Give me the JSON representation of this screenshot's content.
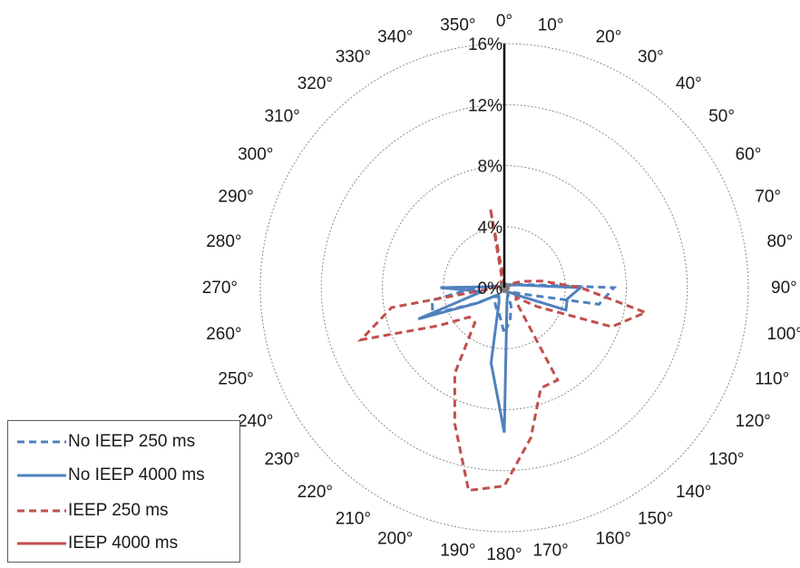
{
  "chart_data": {
    "type": "radar",
    "angle_unit": "°",
    "angles": [
      0,
      10,
      20,
      30,
      40,
      50,
      60,
      70,
      80,
      90,
      100,
      110,
      120,
      130,
      140,
      150,
      160,
      170,
      180,
      190,
      200,
      210,
      220,
      230,
      240,
      250,
      260,
      270,
      280,
      290,
      300,
      310,
      320,
      330,
      340,
      350
    ],
    "angle_labels": [
      "0°",
      "10°",
      "20°",
      "30°",
      "40°",
      "50°",
      "60°",
      "70°",
      "80°",
      "90°",
      "100°",
      "110°",
      "120°",
      "130°",
      "140°",
      "150°",
      "160°",
      "170°",
      "180°",
      "190°",
      "200°",
      "210°",
      "220°",
      "230°",
      "240°",
      "250°",
      "260°",
      "270°",
      "280°",
      "290°",
      "300°",
      "310°",
      "320°",
      "330°",
      "340°",
      "350°"
    ],
    "radial_ticks": [
      0,
      4,
      8,
      12,
      16
    ],
    "radial_tick_labels": [
      "0%",
      "4%",
      "8%",
      "12%",
      "16%"
    ],
    "rlim": [
      0,
      16
    ],
    "grid": true,
    "legend_position": "bottom-left",
    "series": [
      {
        "name": "No IEEP 250 ms",
        "color": "#4f81bd",
        "dash": "dashed",
        "values": [
          0.1,
          0.1,
          0.1,
          0.1,
          0.2,
          0.3,
          0.4,
          0.6,
          1.2,
          7.2,
          6.3,
          1.2,
          0.6,
          0.4,
          0.3,
          0.4,
          1.3,
          2.2,
          3.0,
          1.8,
          1.5,
          1.2,
          0.8,
          0.9,
          2.0,
          5.0,
          4.8,
          1.9,
          0.6,
          0.3,
          0.2,
          0.1,
          0.1,
          0.1,
          0.1,
          0.1
        ]
      },
      {
        "name": "No IEEP 4000 ms",
        "color": "#4f81bd",
        "dash": "solid",
        "values": [
          0.1,
          0.1,
          0.1,
          0.1,
          0.1,
          0.1,
          0.2,
          0.5,
          1.0,
          5.0,
          4.2,
          4.3,
          1.0,
          0.5,
          0.4,
          0.5,
          0.6,
          1.0,
          9.5,
          5.0,
          1.0,
          0.7,
          0.6,
          0.9,
          2.0,
          6.0,
          1.5,
          4.2,
          0.4,
          0.2,
          0.1,
          0.1,
          0.1,
          0.1,
          0.1,
          0.1
        ]
      },
      {
        "name": "IEEP 250 ms",
        "color": "#c0504d",
        "dash": "dashed",
        "values": [
          0.3,
          0.1,
          0.1,
          0.1,
          0.2,
          0.3,
          0.5,
          1.2,
          2.5,
          5.0,
          9.4,
          7.5,
          2.5,
          1.0,
          1.2,
          7.0,
          7.0,
          10.0,
          13.0,
          13.5,
          9.5,
          6.5,
          3.0,
          3.0,
          5.0,
          10.0,
          7.5,
          0.5,
          0.4,
          0.4,
          0.2,
          0.2,
          0.3,
          0.4,
          0.3,
          5.3
        ]
      },
      {
        "name": "IEEP 4000 ms",
        "color": "#c0504d",
        "dash": "solid",
        "values": [
          0.1,
          0.1,
          0.1,
          0.1,
          0.1,
          0.1,
          0.1,
          0.1,
          0.1,
          0.1,
          0.1,
          0.1,
          0.1,
          0.1,
          0.1,
          0.1,
          0.1,
          0.1,
          0.1,
          0.1,
          0.1,
          0.1,
          0.1,
          0.1,
          0.1,
          0.1,
          0.1,
          0.1,
          0.1,
          0.1,
          0.1,
          0.1,
          0.1,
          0.1,
          0.1,
          0.1
        ]
      }
    ]
  }
}
